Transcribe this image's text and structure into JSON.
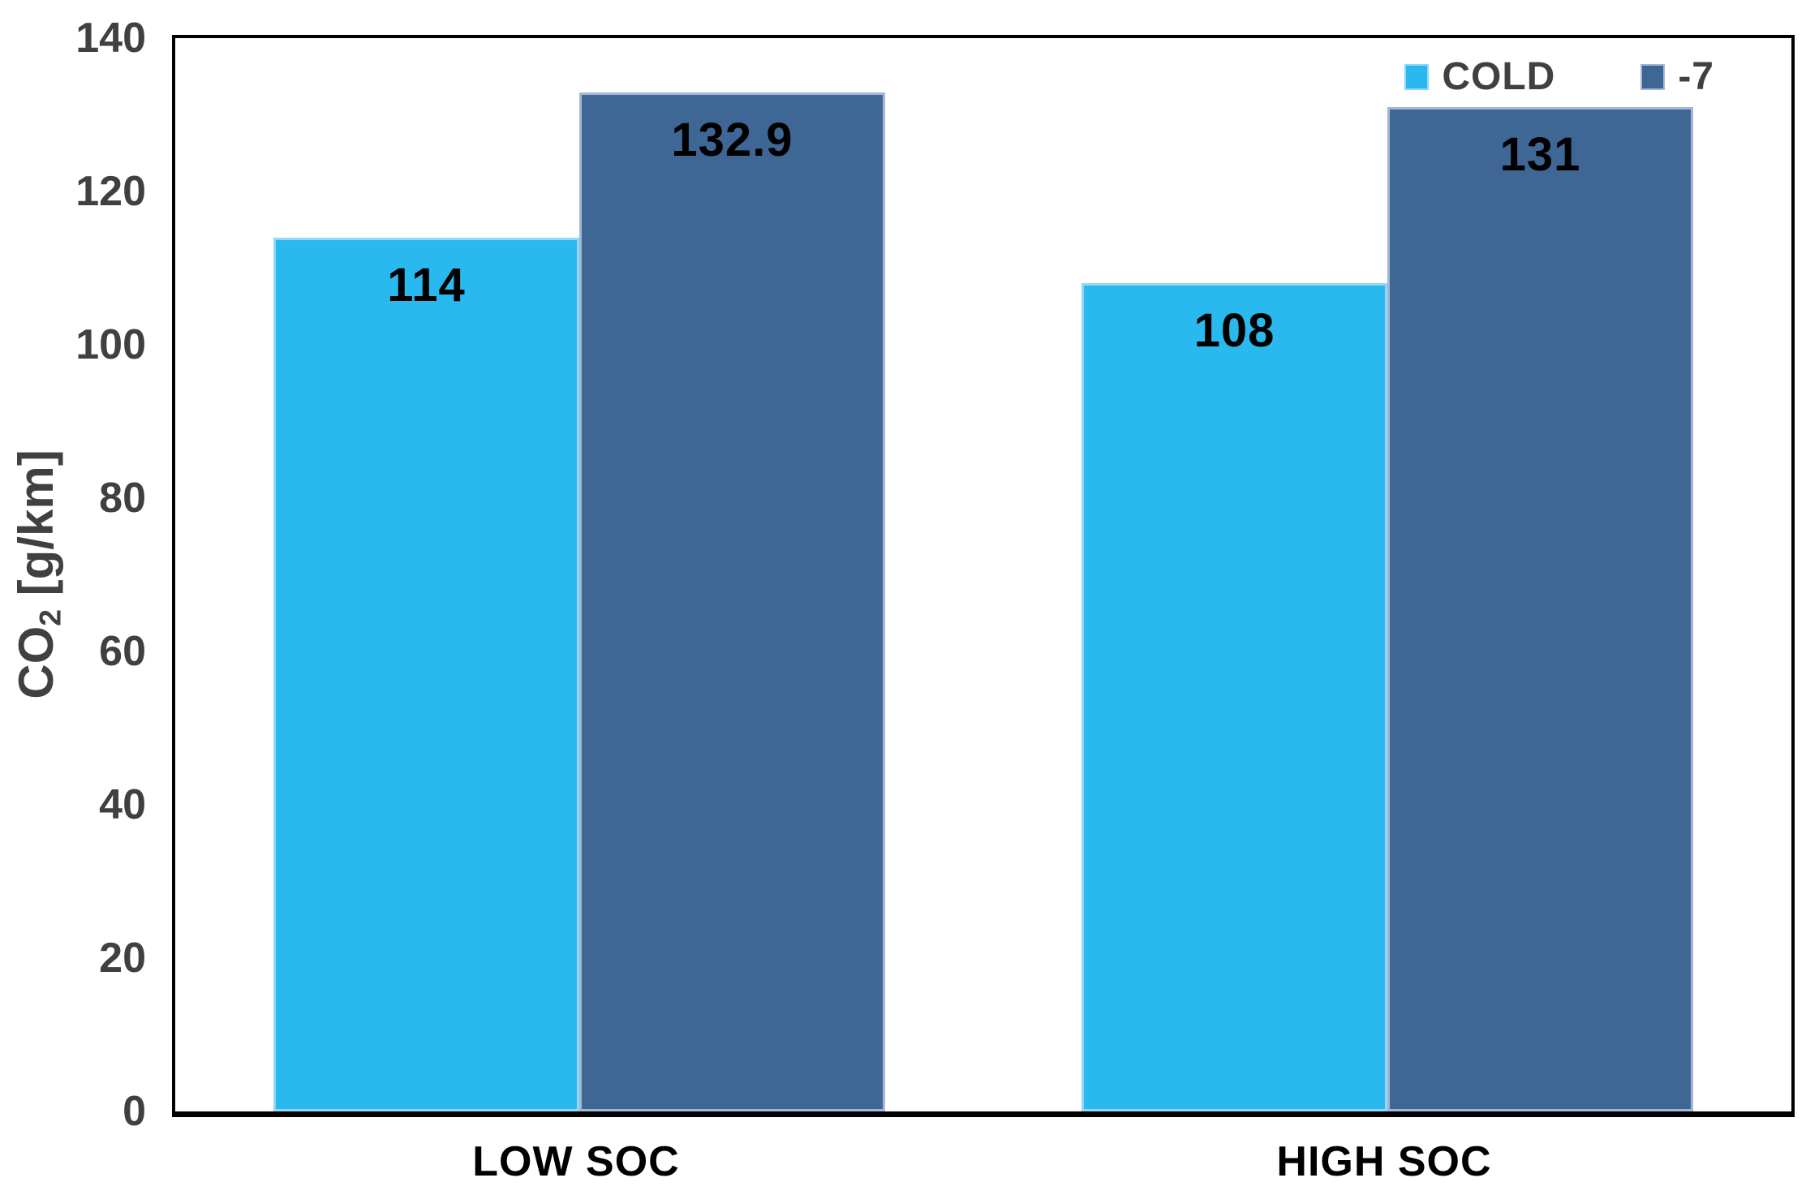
{
  "figure": {
    "background": "#FFFFFF"
  },
  "chart_data": {
    "type": "bar",
    "categories": [
      "LOW SOC",
      "HIGH SOC"
    ],
    "series": [
      {
        "name": "COLD",
        "color": "#29B9EF",
        "border_color": "#8FD9F6",
        "values": [
          114,
          108
        ],
        "data_labels": [
          "114",
          "108"
        ]
      },
      {
        "name": "-7",
        "color": "#3F6795",
        "border_color": "#A6B5D5",
        "values": [
          132.9,
          131
        ],
        "data_labels": [
          "132.9",
          "131"
        ]
      }
    ],
    "ylabel": "CO2 [g/km]",
    "ylabel_parts": {
      "prefix": "CO",
      "sub": "2",
      "suffix": " [g/km]"
    },
    "ylim": [
      0,
      140
    ],
    "yticks": [
      0,
      20,
      40,
      60,
      80,
      100,
      120,
      140
    ],
    "grid": false,
    "legend_position": "top-right",
    "colors": {
      "tick_text": "#404040",
      "axis_title_text": "#404040",
      "legend_text": "#404040",
      "category_text": "#000000",
      "data_label_text": "#000000",
      "axis_line": "#000000"
    }
  }
}
